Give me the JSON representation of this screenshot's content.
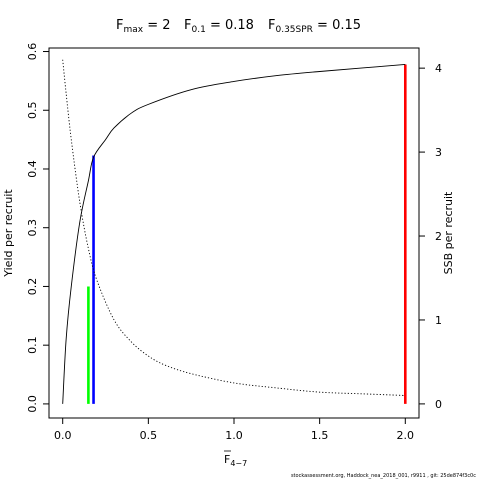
{
  "chart_data": {
    "type": "line",
    "title": {
      "fmax_label": "F",
      "fmax_sub": "max",
      "fmax_value": " = 2",
      "f01_label": "F",
      "f01_sub": "0.1",
      "f01_value": " = 0.18",
      "fspr_label": "F",
      "fspr_sub": "0.35SPR",
      "fspr_value": " = 0.15"
    },
    "xlabel_main": "F",
    "xlabel_sub": "4−7",
    "ylabel_left": "Yield per recruit",
    "ylabel_right": "SSB per recruit",
    "xlim": [
      -0.08,
      2.08
    ],
    "ylim_left": [
      -0.024,
      0.606
    ],
    "ylim_right": [
      -0.168,
      4.24
    ],
    "x_ticks": [
      "0.0",
      "0.5",
      "1.0",
      "1.5",
      "2.0"
    ],
    "y_left_ticks": [
      "0.0",
      "0.1",
      "0.2",
      "0.3",
      "0.4",
      "0.5",
      "0.6"
    ],
    "y_right_ticks": [
      "0",
      "1",
      "2",
      "3",
      "4"
    ],
    "series": [
      {
        "axis": "left",
        "style": "solid",
        "x": [
          0,
          0.02,
          0.05,
          0.1,
          0.15,
          0.18,
          0.25,
          0.3,
          0.4,
          0.5,
          0.75,
          1.0,
          1.25,
          1.5,
          1.75,
          2.0
        ],
        "y": [
          0,
          0.11,
          0.2,
          0.31,
          0.38,
          0.42,
          0.45,
          0.47,
          0.495,
          0.51,
          0.535,
          0.549,
          0.559,
          0.566,
          0.572,
          0.578
        ]
      },
      {
        "axis": "right",
        "style": "dotted",
        "x": [
          0,
          0.02,
          0.05,
          0.1,
          0.15,
          0.2,
          0.3,
          0.4,
          0.5,
          0.6,
          0.75,
          1.0,
          1.25,
          1.5,
          1.75,
          2.0
        ],
        "y": [
          4.1,
          3.7,
          3.15,
          2.4,
          1.85,
          1.47,
          1.0,
          0.74,
          0.57,
          0.46,
          0.36,
          0.25,
          0.19,
          0.14,
          0.12,
          0.1
        ]
      }
    ],
    "reference_lines": [
      {
        "name": "F0.35SPR",
        "x": 0.15,
        "y": 0.2,
        "color": "#00ff00"
      },
      {
        "name": "F0.1",
        "x": 0.18,
        "y": 0.423,
        "color": "#0000ff"
      },
      {
        "name": "Fmax",
        "x": 2.0,
        "y": 0.578,
        "color": "#ff0000"
      }
    ]
  },
  "footer": "stockassessment.org, Haddock_nea_2018_001, r9911 , git: 25de874f3c0c"
}
